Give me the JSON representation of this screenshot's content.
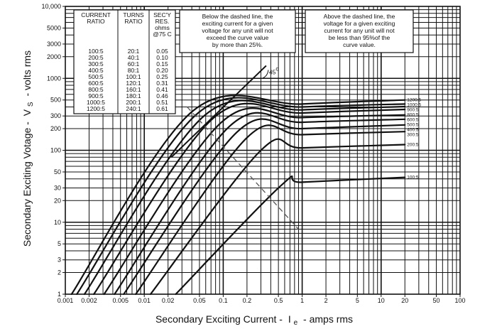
{
  "chart_data": {
    "type": "line",
    "title": "",
    "xlabel": "Secondary Exciting Current -",
    "xlabel_symbol": "I",
    "xlabel_sub": "e",
    "xlabel_tail": "- amps rms",
    "ylabel": "Secondary Exciting Votage -",
    "ylabel_symbol": "V",
    "ylabel_sub": "S",
    "ylabel_tail": "- volts rms",
    "x_scale": "log",
    "y_scale": "log",
    "xlim": [
      0.001,
      100
    ],
    "ylim": [
      1,
      10000
    ],
    "x_ticks": [
      {
        "value": 0.001,
        "label": "0.001"
      },
      {
        "value": 0.002,
        "label": "0.002"
      },
      {
        "value": 0.005,
        "label": "0.005"
      },
      {
        "value": 0.01,
        "label": "0.01"
      },
      {
        "value": 0.02,
        "label": "0.02"
      },
      {
        "value": 0.05,
        "label": "0.05"
      },
      {
        "value": 0.1,
        "label": "0.1"
      },
      {
        "value": 0.2,
        "label": "0.2"
      },
      {
        "value": 0.5,
        "label": "0.5"
      },
      {
        "value": 1,
        "label": "1"
      },
      {
        "value": 2,
        "label": "2"
      },
      {
        "value": 5,
        "label": "5"
      },
      {
        "value": 10,
        "label": "10"
      },
      {
        "value": 20,
        "label": "20"
      },
      {
        "value": 50,
        "label": "50"
      },
      {
        "value": 100,
        "label": "100"
      }
    ],
    "y_ticks": [
      {
        "value": 1,
        "label": "1"
      },
      {
        "value": 2,
        "label": "2"
      },
      {
        "value": 3,
        "label": "3"
      },
      {
        "value": 5,
        "label": "5"
      },
      {
        "value": 10,
        "label": "10"
      },
      {
        "value": 20,
        "label": "20"
      },
      {
        "value": 30,
        "label": "30"
      },
      {
        "value": 50,
        "label": "50"
      },
      {
        "value": 100,
        "label": "100"
      },
      {
        "value": 200,
        "label": "200"
      },
      {
        "value": 300,
        "label": "300"
      },
      {
        "value": 500,
        "label": "500"
      },
      {
        "value": 1000,
        "label": "1000"
      },
      {
        "value": 2000,
        "label": "2000"
      },
      {
        "value": 3000,
        "label": "3000"
      },
      {
        "value": 5000,
        "label": "5000"
      },
      {
        "value": 10000,
        "label": "10,000"
      }
    ],
    "series": [
      {
        "name": "1200:5",
        "points": [
          [
            0.0012,
            1
          ],
          [
            0.041,
            350
          ],
          [
            1,
            440
          ],
          [
            20,
            500
          ]
        ]
      },
      {
        "name": "1000:5",
        "points": [
          [
            0.0014,
            1
          ],
          [
            0.048,
            330
          ],
          [
            1,
            400
          ],
          [
            20,
            440
          ]
        ]
      },
      {
        "name": "900:5",
        "points": [
          [
            0.00175,
            1
          ],
          [
            0.058,
            305
          ],
          [
            1,
            365
          ],
          [
            20,
            405
          ]
        ]
      },
      {
        "name": "800:5",
        "points": [
          [
            0.0023,
            1
          ],
          [
            0.075,
            280
          ],
          [
            1,
            330
          ],
          [
            20,
            370
          ]
        ]
      },
      {
        "name": "600:5",
        "points": [
          [
            0.0031,
            1
          ],
          [
            0.095,
            245
          ],
          [
            1,
            285
          ],
          [
            20,
            310
          ]
        ]
      },
      {
        "name": "500:5",
        "points": [
          [
            0.0042,
            1
          ],
          [
            0.12,
            215
          ],
          [
            1,
            245
          ],
          [
            20,
            270
          ]
        ]
      },
      {
        "name": "400:5",
        "points": [
          [
            0.0055,
            1
          ],
          [
            0.15,
            180
          ],
          [
            1,
            200
          ],
          [
            20,
            225
          ]
        ]
      },
      {
        "name": "300:5",
        "points": [
          [
            0.0078,
            1
          ],
          [
            0.2,
            150
          ],
          [
            1,
            165
          ],
          [
            20,
            182
          ]
        ]
      },
      {
        "name": "200:5",
        "points": [
          [
            0.012,
            1
          ],
          [
            0.3,
            100
          ],
          [
            1,
            108
          ],
          [
            20,
            120
          ]
        ]
      },
      {
        "name": "100:5",
        "points": [
          [
            0.025,
            1
          ],
          [
            0.55,
            33
          ],
          [
            1,
            36
          ],
          [
            20,
            42
          ]
        ]
      }
    ],
    "reference_line": {
      "label": "45",
      "degree": "o",
      "points": [
        [
          0.022,
          80
        ],
        [
          0.35,
          1500
        ]
      ]
    },
    "dashed_line": {
      "points": [
        [
          0.035,
          400
        ],
        [
          0.9,
          8
        ]
      ]
    },
    "table": {
      "headers": [
        [
          "CURRENT",
          "RATIO"
        ],
        [
          "TURNS",
          "RATIO"
        ],
        [
          "SEC'Y",
          "RES.",
          "ohms",
          "@75 C"
        ]
      ],
      "rows": [
        [
          "100:5",
          "20:1",
          "0.05"
        ],
        [
          "200:5",
          "40:1",
          "0.10"
        ],
        [
          "300:5",
          "60:1",
          "0.15"
        ],
        [
          "400:5",
          "80:1",
          "0.20"
        ],
        [
          "500:5",
          "100:1",
          "0.25"
        ],
        [
          "600:5",
          "120:1",
          "0.31"
        ],
        [
          "800:5",
          "160:1",
          "0.41"
        ],
        [
          "900:5",
          "180:1",
          "0.46"
        ],
        [
          "1000:5",
          "200:1",
          "0.51"
        ],
        [
          "1200:5",
          "240:1",
          "0.61"
        ]
      ]
    },
    "notes": [
      [
        "Below the dashed line, the",
        "exciting current for a given",
        "voltage for any unit will not",
        "exceed the curve value",
        "by more than 25%."
      ],
      [
        "Above the dashed line, the",
        "voltage for a given exciting",
        "current for any unit will not",
        "be less than 95%of the",
        "curve value."
      ]
    ],
    "grid": true,
    "legend": "none"
  }
}
